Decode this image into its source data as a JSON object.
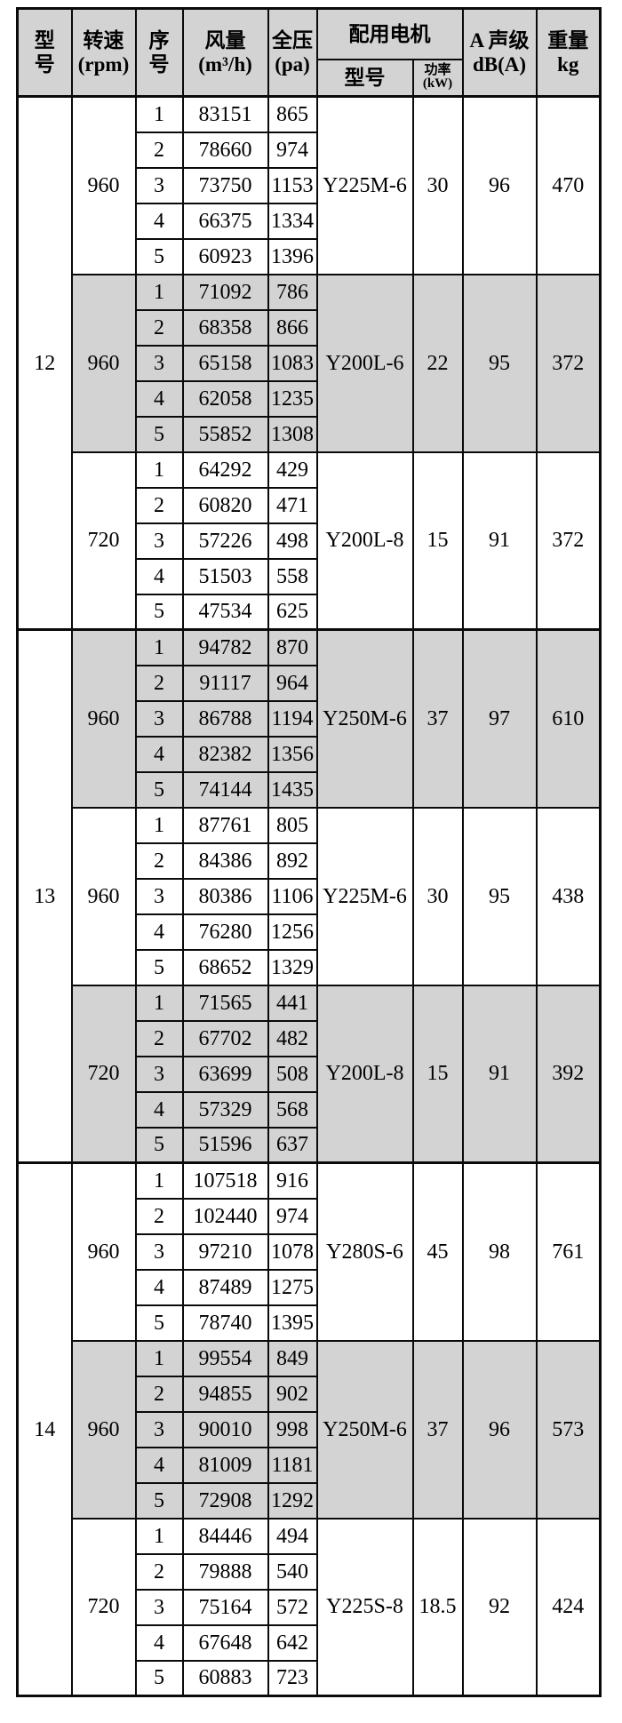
{
  "colors": {
    "header_bg": "#d3d3d3",
    "band_bg": "#d3d3d3",
    "border": "#0a0a0a",
    "page_bg": "#ffffff"
  },
  "table": {
    "headers": {
      "model": "型\n号",
      "speed": "转速\n(rpm)",
      "seq": "序\n号",
      "flow": "风量\n(m³/h)",
      "pressure": "全压\n(pa)",
      "motor_group": "配用电机",
      "motor_model": "型号",
      "power": "功率\n(kW)",
      "noise": "A 声级\ndB(A)",
      "weight": "重量\nkg"
    },
    "groups": [
      {
        "model": "12",
        "blocks": [
          {
            "rpm": "960",
            "shaded": false,
            "motor": "Y225M-6",
            "power": "30",
            "db": "96",
            "weight": "470",
            "rows": [
              [
                "1",
                "83151",
                "865"
              ],
              [
                "2",
                "78660",
                "974"
              ],
              [
                "3",
                "73750",
                "1153"
              ],
              [
                "4",
                "66375",
                "1334"
              ],
              [
                "5",
                "60923",
                "1396"
              ]
            ]
          },
          {
            "rpm": "960",
            "shaded": true,
            "motor": "Y200L-6",
            "power": "22",
            "db": "95",
            "weight": "372",
            "rows": [
              [
                "1",
                "71092",
                "786"
              ],
              [
                "2",
                "68358",
                "866"
              ],
              [
                "3",
                "65158",
                "1083"
              ],
              [
                "4",
                "62058",
                "1235"
              ],
              [
                "5",
                "55852",
                "1308"
              ]
            ]
          },
          {
            "rpm": "720",
            "shaded": false,
            "motor": "Y200L-8",
            "power": "15",
            "db": "91",
            "weight": "372",
            "rows": [
              [
                "1",
                "64292",
                "429"
              ],
              [
                "2",
                "60820",
                "471"
              ],
              [
                "3",
                "57226",
                "498"
              ],
              [
                "4",
                "51503",
                "558"
              ],
              [
                "5",
                "47534",
                "625"
              ]
            ]
          }
        ]
      },
      {
        "model": "13",
        "blocks": [
          {
            "rpm": "960",
            "shaded": true,
            "motor": "Y250M-6",
            "power": "37",
            "db": "97",
            "weight": "610",
            "rows": [
              [
                "1",
                "94782",
                "870"
              ],
              [
                "2",
                "91117",
                "964"
              ],
              [
                "3",
                "86788",
                "1194"
              ],
              [
                "4",
                "82382",
                "1356"
              ],
              [
                "5",
                "74144",
                "1435"
              ]
            ]
          },
          {
            "rpm": "960",
            "shaded": false,
            "motor": "Y225M-6",
            "power": "30",
            "db": "95",
            "weight": "438",
            "rows": [
              [
                "1",
                "87761",
                "805"
              ],
              [
                "2",
                "84386",
                "892"
              ],
              [
                "3",
                "80386",
                "1106"
              ],
              [
                "4",
                "76280",
                "1256"
              ],
              [
                "5",
                "68652",
                "1329"
              ]
            ]
          },
          {
            "rpm": "720",
            "shaded": true,
            "motor": "Y200L-8",
            "power": "15",
            "db": "91",
            "weight": "392",
            "rows": [
              [
                "1",
                "71565",
                "441"
              ],
              [
                "2",
                "67702",
                "482"
              ],
              [
                "3",
                "63699",
                "508"
              ],
              [
                "4",
                "57329",
                "568"
              ],
              [
                "5",
                "51596",
                "637"
              ]
            ]
          }
        ]
      },
      {
        "model": "14",
        "blocks": [
          {
            "rpm": "960",
            "shaded": false,
            "motor": "Y280S-6",
            "power": "45",
            "db": "98",
            "weight": "761",
            "rows": [
              [
                "1",
                "107518",
                "916"
              ],
              [
                "2",
                "102440",
                "974"
              ],
              [
                "3",
                "97210",
                "1078"
              ],
              [
                "4",
                "87489",
                "1275"
              ],
              [
                "5",
                "78740",
                "1395"
              ]
            ]
          },
          {
            "rpm": "960",
            "shaded": true,
            "motor": "Y250M-6",
            "power": "37",
            "db": "96",
            "weight": "573",
            "rows": [
              [
                "1",
                "99554",
                "849"
              ],
              [
                "2",
                "94855",
                "902"
              ],
              [
                "3",
                "90010",
                "998"
              ],
              [
                "4",
                "81009",
                "1181"
              ],
              [
                "5",
                "72908",
                "1292"
              ]
            ]
          },
          {
            "rpm": "720",
            "shaded": false,
            "motor": "Y225S-8",
            "power": "18.5",
            "db": "92",
            "weight": "424",
            "rows": [
              [
                "1",
                "84446",
                "494"
              ],
              [
                "2",
                "79888",
                "540"
              ],
              [
                "3",
                "75164",
                "572"
              ],
              [
                "4",
                "67648",
                "642"
              ],
              [
                "5",
                "60883",
                "723"
              ]
            ]
          }
        ]
      }
    ]
  }
}
